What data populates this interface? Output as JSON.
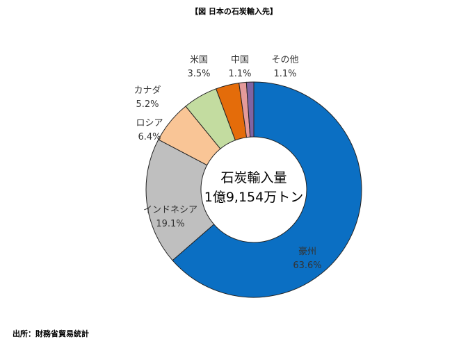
{
  "chart_data": {
    "type": "pie",
    "title": "【図 日本の石炭輸入先】",
    "center_label": [
      "石炭輸入量",
      "1億9,154万トン"
    ],
    "slices": [
      {
        "name": "豪州",
        "value": 63.6,
        "label": "63.6%",
        "color": "#0b6fc3"
      },
      {
        "name": "インドネシア",
        "value": 19.1,
        "label": "19.1%",
        "color": "#bfbfbf"
      },
      {
        "name": "ロシア",
        "value": 6.4,
        "label": "6.4%",
        "color": "#f9c596"
      },
      {
        "name": "カナダ",
        "value": 5.2,
        "label": "5.2%",
        "color": "#c3dca0"
      },
      {
        "name": "米国",
        "value": 3.5,
        "label": "3.5%",
        "color": "#e46c0a"
      },
      {
        "name": "中国",
        "value": 1.1,
        "label": "1.1%",
        "color": "#e49a9a"
      },
      {
        "name": "その他",
        "value": 1.1,
        "label": "1.1%",
        "color": "#8064a2"
      }
    ],
    "legend": "none",
    "donut": true
  },
  "source": "出所：財務省貿易統計"
}
